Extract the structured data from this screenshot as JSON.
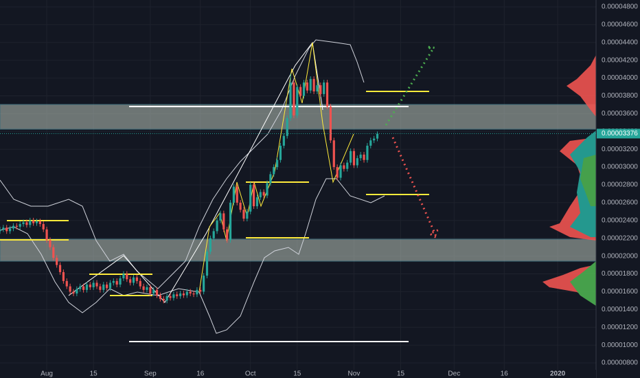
{
  "chart_data": {
    "type": "candlestick",
    "up_color": "#26a69a",
    "down_color": "#ef5350",
    "x": [
      -14,
      -13,
      -12,
      -11,
      -10,
      -9,
      -8,
      -7,
      -6,
      -5,
      -4,
      -3,
      -2,
      -1,
      0,
      1,
      2,
      3,
      4,
      5,
      6,
      7,
      8,
      9,
      10,
      11,
      12,
      13,
      14,
      15,
      16,
      17,
      18,
      19,
      20,
      21,
      22,
      23,
      24,
      25,
      26,
      27,
      28,
      29,
      30,
      31,
      32,
      33,
      34,
      35,
      36,
      37,
      38,
      39,
      40,
      41,
      42,
      43,
      44,
      45,
      46,
      47,
      48,
      49,
      50,
      51,
      52,
      53,
      54,
      55,
      56,
      57,
      58,
      59,
      60,
      61,
      62,
      63,
      64,
      65,
      66,
      67,
      68,
      69,
      70,
      71,
      72,
      73,
      74,
      75,
      76,
      77,
      78,
      79,
      80,
      81,
      82,
      83,
      84,
      85,
      86,
      87,
      88,
      89,
      90,
      91,
      92,
      93,
      94,
      95,
      96,
      97,
      98,
      99
    ],
    "ohlc": [
      [
        2.28e-05,
        2.33e-05,
        2.25e-05,
        2.3e-05
      ],
      [
        2.3e-05,
        2.35e-05,
        2.27e-05,
        2.32e-05
      ],
      [
        2.32e-05,
        2.35e-05,
        2.25e-05,
        2.28e-05
      ],
      [
        2.28e-05,
        2.34e-05,
        2.25e-05,
        2.31e-05
      ],
      [
        2.31e-05,
        2.37e-05,
        2.28e-05,
        2.34e-05
      ],
      [
        2.34e-05,
        2.37e-05,
        2.3e-05,
        2.33e-05
      ],
      [
        2.33e-05,
        2.39e-05,
        2.3e-05,
        2.36e-05
      ],
      [
        2.36e-05,
        2.41e-05,
        2.33e-05,
        2.38e-05
      ],
      [
        2.38e-05,
        2.41e-05,
        2.32e-05,
        2.35e-05
      ],
      [
        2.35e-05,
        2.43e-05,
        2.32e-05,
        2.4e-05
      ],
      [
        2.4e-05,
        2.43e-05,
        2.34e-05,
        2.37e-05
      ],
      [
        2.37e-05,
        2.42e-05,
        2.34e-05,
        2.39e-05
      ],
      [
        2.39e-05,
        2.42e-05,
        2.33e-05,
        2.36e-05
      ],
      [
        2.36e-05,
        2.39e-05,
        2.27e-05,
        2.3e-05
      ],
      [
        2.3e-05,
        2.33e-05,
        2.15e-05,
        2.18e-05
      ],
      [
        2.18e-05,
        2.21e-05,
        2.07e-05,
        2.1e-05
      ],
      [
        2.1e-05,
        2.13e-05,
        1.95e-05,
        1.98e-05
      ],
      [
        1.98e-05,
        2.01e-05,
        1.87e-05,
        1.9e-05
      ],
      [
        1.9e-05,
        1.93e-05,
        1.79e-05,
        1.82e-05
      ],
      [
        1.82e-05,
        1.85e-05,
        1.69e-05,
        1.72e-05
      ],
      [
        1.72e-05,
        1.75e-05,
        1.63e-05,
        1.66e-05
      ],
      [
        1.66e-05,
        1.69e-05,
        1.57e-05,
        1.6e-05
      ],
      [
        1.6e-05,
        1.63e-05,
        1.55e-05,
        1.58e-05
      ],
      [
        1.58e-05,
        1.66e-05,
        1.55e-05,
        1.63e-05
      ],
      [
        1.63e-05,
        1.69e-05,
        1.6e-05,
        1.66e-05
      ],
      [
        1.66e-05,
        1.69e-05,
        1.59e-05,
        1.62e-05
      ],
      [
        1.62e-05,
        1.71e-05,
        1.59e-05,
        1.68e-05
      ],
      [
        1.68e-05,
        1.71e-05,
        1.62e-05,
        1.65e-05
      ],
      [
        1.65e-05,
        1.73e-05,
        1.62e-05,
        1.7e-05
      ],
      [
        1.7e-05,
        1.73e-05,
        1.63e-05,
        1.66e-05
      ],
      [
        1.66e-05,
        1.69e-05,
        1.59e-05,
        1.62e-05
      ],
      [
        1.62e-05,
        1.71e-05,
        1.59e-05,
        1.68e-05
      ],
      [
        1.68e-05,
        1.71e-05,
        1.61e-05,
        1.64e-05
      ],
      [
        1.64e-05,
        1.73e-05,
        1.61e-05,
        1.7e-05
      ],
      [
        1.7e-05,
        1.75e-05,
        1.67e-05,
        1.72e-05
      ],
      [
        1.72e-05,
        1.75e-05,
        1.65e-05,
        1.68e-05
      ],
      [
        1.68e-05,
        1.78e-05,
        1.65e-05,
        1.75e-05
      ],
      [
        1.75e-05,
        1.83e-05,
        1.72e-05,
        1.8e-05
      ],
      [
        1.8e-05,
        1.83e-05,
        1.71e-05,
        1.74e-05
      ],
      [
        1.74e-05,
        1.77e-05,
        1.67e-05,
        1.7e-05
      ],
      [
        1.7e-05,
        1.79e-05,
        1.67e-05,
        1.76e-05
      ],
      [
        1.76e-05,
        1.79e-05,
        1.69e-05,
        1.72e-05
      ],
      [
        1.72e-05,
        1.75e-05,
        1.63e-05,
        1.66e-05
      ],
      [
        1.66e-05,
        1.69e-05,
        1.59e-05,
        1.62e-05
      ],
      [
        1.62e-05,
        1.68e-05,
        1.59e-05,
        1.65e-05
      ],
      [
        1.65e-05,
        1.68e-05,
        1.55e-05,
        1.58e-05
      ],
      [
        1.58e-05,
        1.65e-05,
        1.55e-05,
        1.62e-05
      ],
      [
        1.62e-05,
        1.65e-05,
        1.53e-05,
        1.56e-05
      ],
      [
        1.56e-05,
        1.59e-05,
        1.49e-05,
        1.52e-05
      ],
      [
        1.52e-05,
        1.55e-05,
        1.47e-05,
        1.5e-05
      ],
      [
        1.5e-05,
        1.58e-05,
        1.47e-05,
        1.55e-05
      ],
      [
        1.55e-05,
        1.58e-05,
        1.5e-05,
        1.53e-05
      ],
      [
        1.53e-05,
        1.6e-05,
        1.5e-05,
        1.57e-05
      ],
      [
        1.57e-05,
        1.6e-05,
        1.52e-05,
        1.55e-05
      ],
      [
        1.55e-05,
        1.61e-05,
        1.52e-05,
        1.58e-05
      ],
      [
        1.58e-05,
        1.61e-05,
        1.53e-05,
        1.56e-05
      ],
      [
        1.56e-05,
        1.63e-05,
        1.53e-05,
        1.6e-05
      ],
      [
        1.6e-05,
        1.63e-05,
        1.55e-05,
        1.58e-05
      ],
      [
        1.58e-05,
        1.61e-05,
        1.54e-05,
        1.57e-05
      ],
      [
        1.57e-05,
        1.65e-05,
        1.54e-05,
        1.62e-05
      ],
      [
        1.62e-05,
        1.65e-05,
        1.57e-05,
        1.6e-05
      ],
      [
        1.6e-05,
        1.81e-05,
        1.57e-05,
        1.78e-05
      ],
      [
        1.78e-05,
        2.08e-05,
        1.75e-05,
        2.05e-05
      ],
      [
        2.05e-05,
        2.23e-05,
        2.02e-05,
        2.2e-05
      ],
      [
        2.2e-05,
        2.31e-05,
        2.17e-05,
        2.28e-05
      ],
      [
        2.28e-05,
        2.43e-05,
        2.25e-05,
        2.4e-05
      ],
      [
        2.4e-05,
        2.51e-05,
        2.37e-05,
        2.48e-05
      ],
      [
        2.48e-05,
        2.51e-05,
        2.27e-05,
        2.3e-05
      ],
      [
        2.3e-05,
        2.33e-05,
        2.15e-05,
        2.18e-05
      ],
      [
        2.18e-05,
        2.63e-05,
        2.15e-05,
        2.6e-05
      ],
      [
        2.6e-05,
        2.81e-05,
        2.57e-05,
        2.78e-05
      ],
      [
        2.78e-05,
        2.81e-05,
        2.57e-05,
        2.6e-05
      ],
      [
        2.6e-05,
        2.63e-05,
        2.49e-05,
        2.52e-05
      ],
      [
        2.52e-05,
        2.55e-05,
        2.39e-05,
        2.42e-05
      ],
      [
        2.42e-05,
        2.53e-05,
        2.39e-05,
        2.5e-05
      ],
      [
        2.5e-05,
        2.83e-05,
        2.47e-05,
        2.8e-05
      ],
      [
        2.8e-05,
        2.83e-05,
        2.53e-05,
        2.56e-05
      ],
      [
        2.56e-05,
        2.69e-05,
        2.53e-05,
        2.66e-05
      ],
      [
        2.66e-05,
        2.75e-05,
        2.63e-05,
        2.72e-05
      ],
      [
        2.72e-05,
        2.75e-05,
        2.65e-05,
        2.68e-05
      ],
      [
        2.68e-05,
        2.85e-05,
        2.65e-05,
        2.82e-05
      ],
      [
        2.82e-05,
        2.95e-05,
        2.79e-05,
        2.92e-05
      ],
      [
        2.92e-05,
        3.03e-05,
        2.89e-05,
        3e-05
      ],
      [
        3e-05,
        3.11e-05,
        2.97e-05,
        3.08e-05
      ],
      [
        3.08e-05,
        3.27e-05,
        3.05e-05,
        3.24e-05
      ],
      [
        3.24e-05,
        3.38e-05,
        3.21e-05,
        3.35e-05
      ],
      [
        3.35e-05,
        3.58e-05,
        3.32e-05,
        3.55e-05
      ],
      [
        3.55e-05,
        4.05e-05,
        3.52e-05,
        3.95e-05
      ],
      [
        3.95e-05,
        3.98e-05,
        3.55e-05,
        3.58e-05
      ],
      [
        3.58e-05,
        3.93e-05,
        3.55e-05,
        3.9e-05
      ],
      [
        3.9e-05,
        3.93e-05,
        3.77e-05,
        3.8e-05
      ],
      [
        3.8e-05,
        3.98e-05,
        3.77e-05,
        3.95e-05
      ],
      [
        3.95e-05,
        3.98e-05,
        3.83e-05,
        3.86e-05
      ],
      [
        3.86e-05,
        4.02e-05,
        3.83e-05,
        3.99e-05
      ],
      [
        3.99e-05,
        4.02e-05,
        3.82e-05,
        3.85e-05
      ],
      [
        3.85e-05,
        3.95e-05,
        3.82e-05,
        3.92e-05
      ],
      [
        3.92e-05,
        3.95e-05,
        3.79e-05,
        3.82e-05
      ],
      [
        3.82e-05,
        3.98e-05,
        3.79e-05,
        3.95e-05
      ],
      [
        3.95e-05,
        3.98e-05,
        3.65e-05,
        3.68e-05
      ],
      [
        3.68e-05,
        3.71e-05,
        3.27e-05,
        3.3e-05
      ],
      [
        3.3e-05,
        3.33e-05,
        2.97e-05,
        3e-05
      ],
      [
        3e-05,
        3.03e-05,
        2.85e-05,
        2.88e-05
      ],
      [
        2.88e-05,
        3.05e-05,
        2.85e-05,
        3.02e-05
      ],
      [
        3.02e-05,
        3.05e-05,
        2.95e-05,
        2.98e-05
      ],
      [
        2.98e-05,
        3.08e-05,
        2.95e-05,
        3.05e-05
      ],
      [
        3.05e-05,
        3.21e-05,
        3.02e-05,
        3.18e-05
      ],
      [
        3.18e-05,
        3.21e-05,
        2.99e-05,
        3.02e-05
      ],
      [
        3.02e-05,
        3.13e-05,
        2.99e-05,
        3.1e-05
      ],
      [
        3.1e-05,
        3.17e-05,
        3.07e-05,
        3.14e-05
      ],
      [
        3.14e-05,
        3.17e-05,
        3.05e-05,
        3.08e-05
      ],
      [
        3.08e-05,
        3.27e-05,
        3.05e-05,
        3.24e-05
      ],
      [
        3.24e-05,
        3.33e-05,
        3.21e-05,
        3.3e-05
      ],
      [
        3.3e-05,
        3.35e-05,
        3.27e-05,
        3.32e-05
      ],
      [
        3.32e-05,
        3.4e-05,
        3.29e-05,
        3.376e-05
      ]
    ],
    "last_price": {
      "value": 3.376e-05,
      "label": "0.00003376"
    },
    "xlim": [
      -14,
      164.5
    ],
    "xticks": [
      {
        "value": 0,
        "label": "Aug"
      },
      {
        "value": 14,
        "label": "15"
      },
      {
        "value": 31,
        "label": "Sep"
      },
      {
        "value": 46,
        "label": "16"
      },
      {
        "value": 61,
        "label": "Oct"
      },
      {
        "value": 75,
        "label": "15"
      },
      {
        "value": 92,
        "label": "Nov"
      },
      {
        "value": 106,
        "label": "15"
      },
      {
        "value": 122,
        "label": "Dec"
      },
      {
        "value": 137,
        "label": "16"
      },
      {
        "value": 153,
        "label": "2020"
      }
    ],
    "ylim": [
      7.23e-06,
      4.877e-05
    ],
    "yticks": [
      {
        "value": 4.8e-05,
        "label": "0.00004800"
      },
      {
        "value": 4.6e-05,
        "label": "0.00004600"
      },
      {
        "value": 4.4e-05,
        "label": "0.00004400"
      },
      {
        "value": 4.2e-05,
        "label": "0.00004200"
      },
      {
        "value": 4e-05,
        "label": "0.00004000"
      },
      {
        "value": 3.8e-05,
        "label": "0.00003800"
      },
      {
        "value": 3.6e-05,
        "label": "0.00003600"
      },
      {
        "value": 3.4e-05,
        "label": "0.00003400"
      },
      {
        "value": 3.2e-05,
        "label": "0.00003200"
      },
      {
        "value": 3e-05,
        "label": "0.00003000"
      },
      {
        "value": 2.8e-05,
        "label": "0.00002800"
      },
      {
        "value": 2.6e-05,
        "label": "0.00002600"
      },
      {
        "value": 2.4e-05,
        "label": "0.00002400"
      },
      {
        "value": 2.2e-05,
        "label": "0.00002200"
      },
      {
        "value": 2e-05,
        "label": "0.00002000"
      },
      {
        "value": 1.8e-05,
        "label": "0.00001800"
      },
      {
        "value": 1.6e-05,
        "label": "0.00001600"
      },
      {
        "value": 1.4e-05,
        "label": "0.00001400"
      },
      {
        "value": 1.2e-05,
        "label": "0.00001200"
      },
      {
        "value": 1e-05,
        "label": "0.00001000"
      },
      {
        "value": 8e-06,
        "label": "0.00000800"
      }
    ],
    "grid": true
  }
}
